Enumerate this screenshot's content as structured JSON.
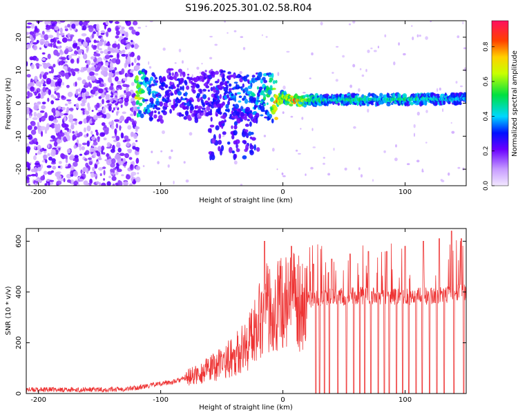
{
  "title": "S196.2025.301.02.58.R04",
  "colors": {
    "snr_line": "#ee3333",
    "axis": "#000000",
    "noise_purple": "#8800ee",
    "noise_light": "#d8b8f8"
  },
  "chart_data": [
    {
      "type": "heatmap",
      "name": "spectrogram",
      "xlabel": "Height of straight line (km)",
      "ylabel": "Frequency (Hz)",
      "xlim": [
        -210,
        150
      ],
      "ylim": [
        -25,
        25
      ],
      "xticks": [
        -200,
        -100,
        0,
        100
      ],
      "xtick_labels": [
        "-200",
        "-100",
        "0",
        "100"
      ],
      "yticks": [
        -20,
        -10,
        0,
        10,
        20
      ],
      "ytick_labels": [
        "-20",
        "-10",
        "0",
        "10",
        "20"
      ],
      "ridge": [
        [
          -120,
          3.5,
          0.7
        ],
        [
          -110,
          2.5,
          0.45
        ],
        [
          -100,
          1.0,
          0.35
        ],
        [
          -90,
          4.5,
          0.3
        ],
        [
          -80,
          2.0,
          0.35
        ],
        [
          -70,
          1.0,
          0.3
        ],
        [
          -60,
          3.5,
          0.3
        ],
        [
          -45,
          2.5,
          0.35
        ],
        [
          -30,
          1.5,
          0.4
        ],
        [
          -20,
          3.0,
          0.45
        ],
        [
          -10,
          2.0,
          0.55
        ],
        [
          -5,
          0.5,
          0.85
        ],
        [
          0,
          2.0,
          0.6
        ],
        [
          5,
          1.0,
          0.75
        ],
        [
          10,
          0.8,
          0.85
        ],
        [
          20,
          0.9,
          0.55
        ],
        [
          40,
          1.0,
          0.45
        ],
        [
          60,
          1.1,
          0.5
        ],
        [
          80,
          1.1,
          0.45
        ],
        [
          100,
          1.2,
          0.5
        ],
        [
          120,
          1.2,
          0.45
        ],
        [
          150,
          1.3,
          0.4
        ]
      ],
      "colorbar": {
        "label": "Normalized spectral amplitude",
        "range": [
          0,
          0.95
        ],
        "ticks": [
          0.0,
          0.2,
          0.4,
          0.6,
          0.8
        ],
        "tick_labels": [
          "0.0",
          "0.2",
          "0.4",
          "0.6",
          "0.8"
        ]
      }
    },
    {
      "type": "line",
      "name": "snr",
      "xlabel": "Height of straight line (km)",
      "ylabel": "SNR (10 * v/v)",
      "xlim": [
        -210,
        150
      ],
      "ylim": [
        0,
        650
      ],
      "xticks": [
        -200,
        -100,
        0,
        100
      ],
      "xtick_labels": [
        "-200",
        "-100",
        "0",
        "100"
      ],
      "yticks": [
        0,
        200,
        400,
        600
      ],
      "ytick_labels": [
        "0",
        "200",
        "400",
        "600"
      ],
      "series": [
        {
          "name": "SNR",
          "x": [
            -210,
            -180,
            -150,
            -130,
            -120,
            -110,
            -100,
            -90,
            -80,
            -70,
            -60,
            -50,
            -40,
            -30,
            -25,
            -20,
            -15,
            -10,
            -5,
            0,
            10,
            20,
            30,
            40,
            50,
            60,
            70,
            80,
            90,
            100,
            110,
            120,
            130,
            140,
            150
          ],
          "y": [
            15,
            15,
            15,
            18,
            22,
            30,
            40,
            45,
            60,
            75,
            95,
            120,
            150,
            190,
            230,
            300,
            330,
            340,
            350,
            355,
            360,
            370,
            380,
            385,
            380,
            385,
            385,
            380,
            385,
            380,
            385,
            385,
            390,
            395,
            400
          ],
          "peaks": [
            [
              -15,
              600
            ],
            [
              7,
              580
            ],
            [
              25,
              510
            ],
            [
              40,
              530
            ],
            [
              55,
              550
            ],
            [
              70,
              560
            ],
            [
              85,
              560
            ],
            [
              100,
              580
            ],
            [
              115,
              600
            ],
            [
              128,
              610
            ],
            [
              138,
              640
            ],
            [
              146,
              610
            ]
          ],
          "drops_to_zero": [
            27,
            30,
            34,
            38,
            45,
            52,
            58,
            63,
            67,
            72,
            78,
            83,
            87,
            93,
            98,
            103,
            109,
            114,
            120,
            126,
            132,
            140,
            148
          ]
        }
      ]
    }
  ]
}
